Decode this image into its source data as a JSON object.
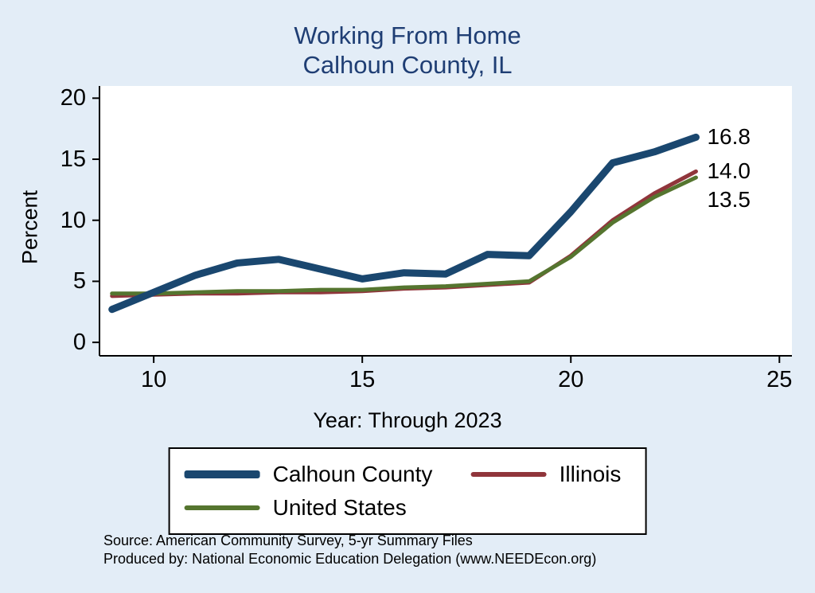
{
  "title": {
    "line1": "Working From Home",
    "line2": "Calhoun County, IL"
  },
  "colors": {
    "background": "#e3edf7",
    "title": "#1f3e74",
    "plot_background": "#ffffff",
    "axis": "#000000"
  },
  "chart_data": {
    "type": "line",
    "title": "Working From Home Calhoun County, IL",
    "xlabel": "Year: Through 2023",
    "ylabel": "Percent",
    "x": [
      9,
      10,
      11,
      12,
      13,
      14,
      15,
      16,
      17,
      18,
      19,
      20,
      21,
      22,
      23
    ],
    "series": [
      {
        "name": "Calhoun County",
        "color": "#1a476f",
        "line_width": 9,
        "values": [
          2.7,
          4.1,
          5.5,
          6.5,
          6.8,
          6.0,
          5.2,
          5.7,
          5.6,
          7.2,
          7.1,
          10.7,
          14.7,
          15.6,
          16.8
        ],
        "end_label": "16.8"
      },
      {
        "name": "Illinois",
        "color": "#90353b",
        "line_width": 5,
        "values": [
          3.8,
          3.9,
          4.0,
          4.0,
          4.1,
          4.1,
          4.2,
          4.4,
          4.5,
          4.7,
          4.9,
          7.1,
          10.0,
          12.2,
          14.0
        ],
        "end_label": "14.0"
      },
      {
        "name": "United States",
        "color": "#55752f",
        "line_width": 5,
        "values": [
          4.0,
          4.0,
          4.1,
          4.2,
          4.2,
          4.3,
          4.3,
          4.5,
          4.6,
          4.8,
          5.0,
          7.0,
          9.8,
          11.9,
          13.5
        ],
        "end_label": "13.5"
      }
    ],
    "xticks": [
      10,
      15,
      20,
      25
    ],
    "yticks": [
      0,
      5,
      10,
      15,
      20
    ],
    "xlim": [
      8.7,
      25.3
    ],
    "ylim": [
      -1.1,
      21.0
    ],
    "grid": false,
    "legend_position": "bottom"
  },
  "legend": {
    "items": [
      {
        "label": "Calhoun County",
        "color": "#1a476f",
        "swatch_height": 10
      },
      {
        "label": "Illinois",
        "color": "#90353b",
        "swatch_height": 6
      },
      {
        "label": "United States",
        "color": "#55752f",
        "swatch_height": 6
      }
    ]
  },
  "footer": {
    "source": "Source: American Community Survey, 5-yr Summary Files",
    "produced_by": "Produced by: National Economic Education Delegation (www.NEEDEcon.org)"
  }
}
